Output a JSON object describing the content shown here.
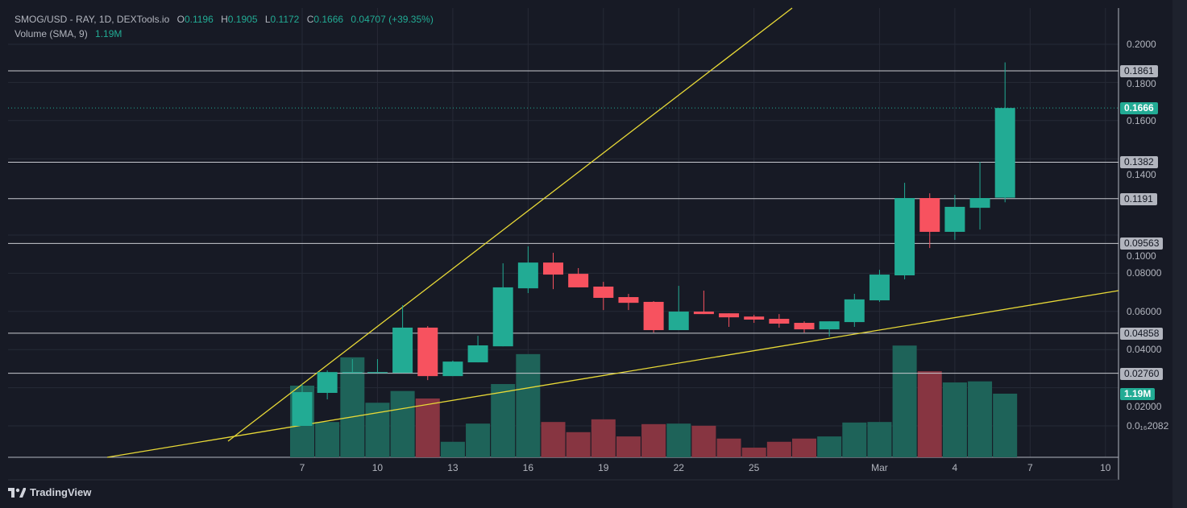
{
  "legend": {
    "symbol": "SMOG/USD - RAY, 1D, DEXTools.io",
    "open_label": "O",
    "open": "0.1196",
    "high_label": "H",
    "high": "0.1905",
    "low_label": "L",
    "low": "0.1172",
    "close_label": "C",
    "close": "0.1666",
    "change": "0.04707 (+39.35%)",
    "volume_title": "Volume (SMA, 9)",
    "volume_value": "1.19M"
  },
  "colors": {
    "background": "#171a25",
    "up": "#22ab94",
    "down": "#f7525f",
    "vol_up": "#1e6359",
    "vol_down": "#873541",
    "trendline": "#e8d937",
    "hline": "#c8cad0",
    "grid": "#262a36"
  },
  "price_axis": {
    "ticks": [
      {
        "label": "0.2000",
        "value": 0.2
      },
      {
        "label": "0.1800",
        "value": 0.18
      },
      {
        "label": "0.1600",
        "value": 0.16
      },
      {
        "label": "0.1400",
        "value": 0.14
      },
      {
        "label": "0.1000",
        "value": 0.1
      },
      {
        "label": "0.08000",
        "value": 0.08
      },
      {
        "label": "0.06000",
        "value": 0.06
      },
      {
        "label": "0.04000",
        "value": 0.04
      },
      {
        "label": "0.02000",
        "value": 0.02
      },
      {
        "label": "0.0₁₆2082",
        "value": 2.082e-07
      }
    ],
    "horizontal_levels": [
      {
        "label": "0.1861",
        "value": 0.1861
      },
      {
        "label": "0.1382",
        "value": 0.1382
      },
      {
        "label": "0.1191",
        "value": 0.1191
      },
      {
        "label": "0.09563",
        "value": 0.09563
      },
      {
        "label": "0.04858",
        "value": 0.04858
      },
      {
        "label": "0.02760",
        "value": 0.0276
      }
    ],
    "current_price": {
      "label": "0.1666",
      "value": 0.1666
    },
    "volume_label": "1.19M"
  },
  "time_axis": {
    "ticks": [
      "7",
      "10",
      "13",
      "16",
      "19",
      "22",
      "25",
      "Mar",
      "4",
      "7",
      "10"
    ]
  },
  "chart_data": {
    "type": "candlestick",
    "ohlc": [
      [
        0.0,
        0.0219,
        0.0,
        0.0177
      ],
      [
        0.0173,
        0.0291,
        0.0139,
        0.0282
      ],
      [
        0.0282,
        0.035,
        0.0282,
        0.0282
      ],
      [
        0.0282,
        0.035,
        0.0282,
        0.0282
      ],
      [
        0.0278,
        0.0633,
        0.0278,
        0.0515
      ],
      [
        0.0515,
        0.0523,
        0.024,
        0.0261
      ],
      [
        0.0261,
        0.0342,
        0.0261,
        0.0337
      ],
      [
        0.0333,
        0.0472,
        0.0333,
        0.0422
      ],
      [
        0.0417,
        0.0852,
        0.0417,
        0.0726
      ],
      [
        0.0721,
        0.0941,
        0.0696,
        0.0856
      ],
      [
        0.0856,
        0.0907,
        0.0717,
        0.0793
      ],
      [
        0.0797,
        0.0827,
        0.0726,
        0.0726
      ],
      [
        0.073,
        0.0755,
        0.0607,
        0.0671
      ],
      [
        0.0675,
        0.0692,
        0.0607,
        0.0645
      ],
      [
        0.065,
        0.0654,
        0.0489,
        0.0502
      ],
      [
        0.0502,
        0.0734,
        0.0502,
        0.0599
      ],
      [
        0.0599,
        0.0709,
        0.0586,
        0.0586
      ],
      [
        0.059,
        0.059,
        0.0519,
        0.0569
      ],
      [
        0.0573,
        0.0582,
        0.054,
        0.0557
      ],
      [
        0.0561,
        0.0586,
        0.0515,
        0.0536
      ],
      [
        0.054,
        0.0548,
        0.0489,
        0.0506
      ],
      [
        0.0506,
        0.0548,
        0.0468,
        0.0548
      ],
      [
        0.0544,
        0.0692,
        0.0519,
        0.0663
      ],
      [
        0.0658,
        0.0818,
        0.065,
        0.0793
      ],
      [
        0.0789,
        0.1274,
        0.0768,
        0.1194
      ],
      [
        0.1194,
        0.1219,
        0.0932,
        0.1017
      ],
      [
        0.1017,
        0.1211,
        0.0975,
        0.1148
      ],
      [
        0.1143,
        0.1384,
        0.1029,
        0.1194
      ],
      [
        0.1196,
        0.1905,
        0.1172,
        0.1666
      ]
    ],
    "volume_millions": [
      1.34,
      0.66,
      1.87,
      1.02,
      1.24,
      1.1,
      0.29,
      0.63,
      1.37,
      1.93,
      0.66,
      0.47,
      0.71,
      0.39,
      0.62,
      0.63,
      0.59,
      0.35,
      0.18,
      0.29,
      0.35,
      0.39,
      0.65,
      0.66,
      2.09,
      1.61,
      1.4,
      1.42,
      1.19
    ],
    "trendlines": 2
  },
  "branding": {
    "name": "TradingView"
  }
}
